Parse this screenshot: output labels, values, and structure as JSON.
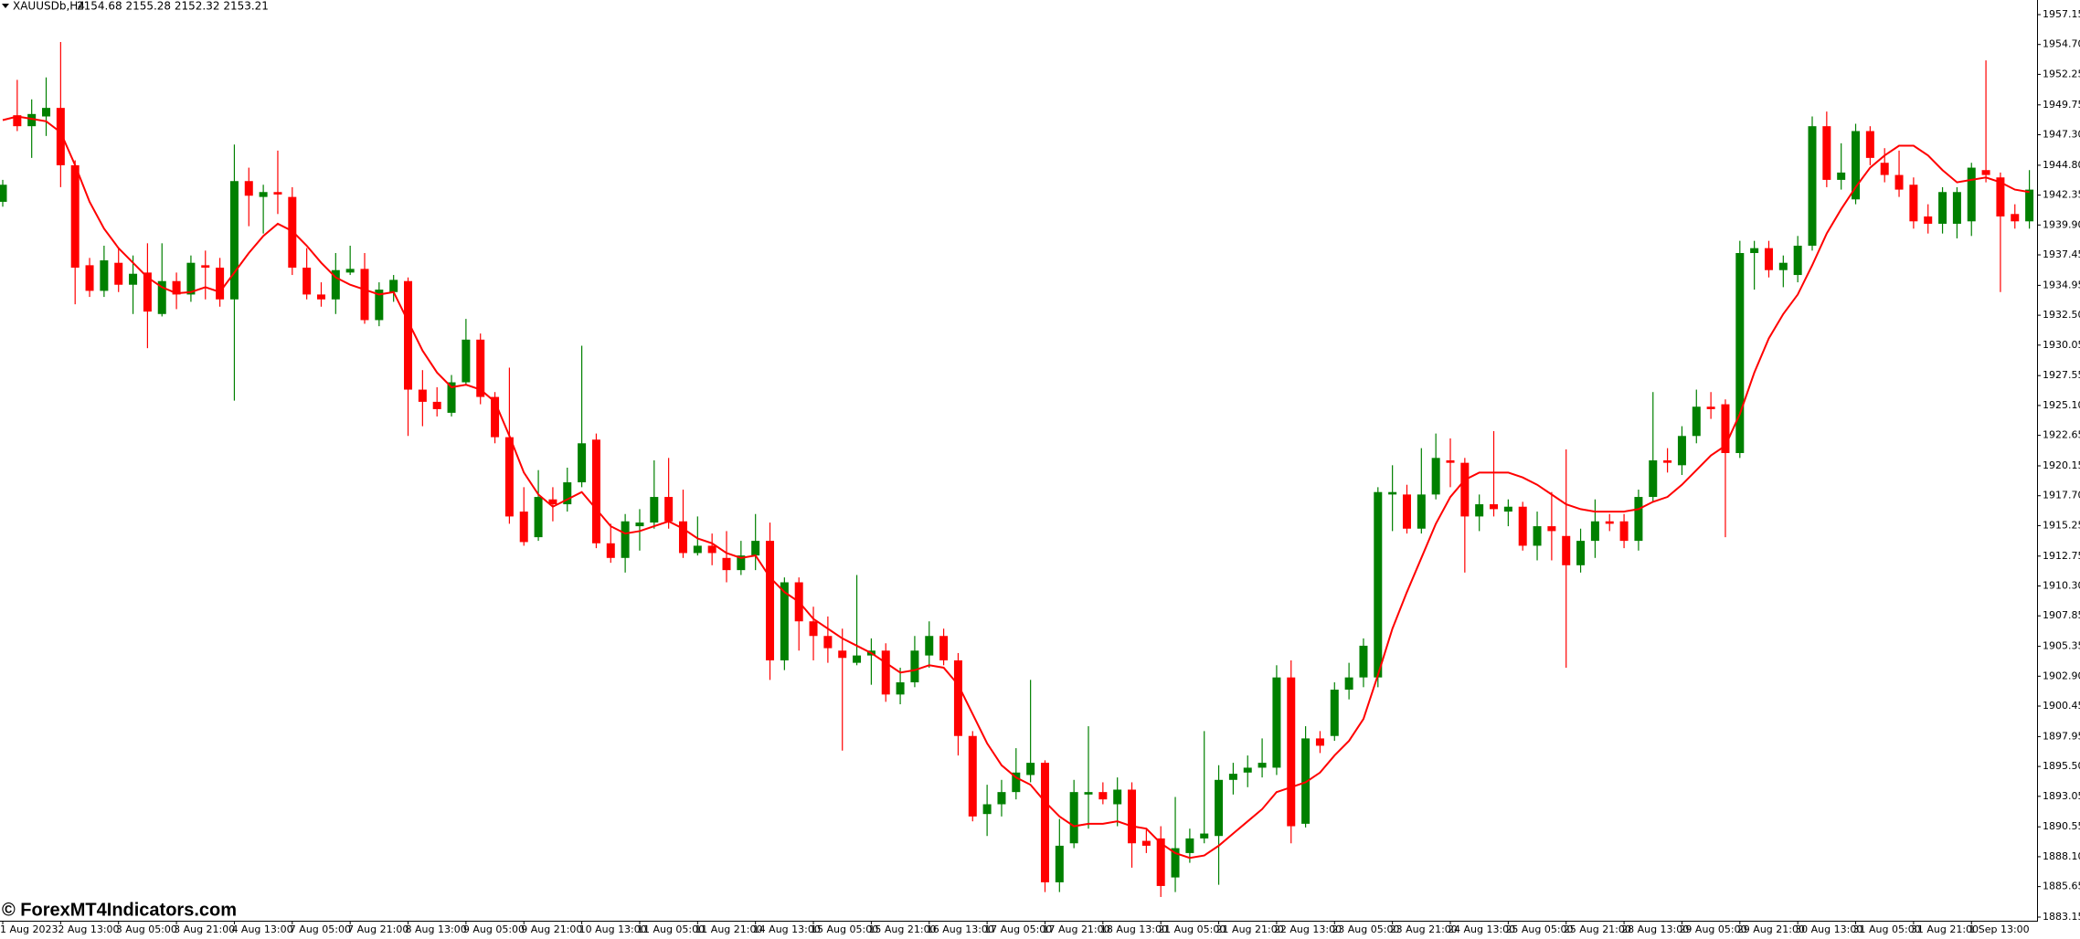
{
  "chart_data": {
    "type": "candlestick",
    "title": "XAUUSDb,H4",
    "subtitle": "2154.68 2155.28 2152.32 2153.21",
    "watermark": "© ForexMT4Indicators.com",
    "up_color": "#008000",
    "down_color": "#ff0000",
    "ylim": [
      1883.15,
      1957.15
    ],
    "yticks": [
      1957.15,
      {
        "value": 1954.7,
        "label": "1954.70"
      },
      1952.25,
      1949.75,
      {
        "value": 1947.3,
        "label": "1947.30"
      },
      {
        "value": 1944.8,
        "label": "1944.80"
      },
      1942.35,
      {
        "value": 1939.9,
        "label": "1939.90"
      },
      1937.45,
      1934.95,
      {
        "value": 1932.5,
        "label": "1932.50"
      },
      1930.05,
      1927.55,
      {
        "value": 1925.1,
        "label": "1925.10"
      },
      1922.65,
      1920.15,
      {
        "value": 1917.7,
        "label": "1917.70"
      },
      1915.25,
      1912.75,
      {
        "value": 1910.3,
        "label": "1910.30"
      },
      1907.85,
      1905.35,
      {
        "value": 1902.9,
        "label": "1902.90"
      },
      1900.45,
      1897.95,
      {
        "value": 1895.5,
        "label": "1895.50"
      },
      1893.05,
      1890.55,
      {
        "value": 1888.1,
        "label": "1888.10"
      },
      1885.65,
      1883.15
    ],
    "categories": [
      "1 Aug 2023",
      null,
      null,
      null,
      "2 Aug 13:00",
      null,
      null,
      null,
      "3 Aug 05:00",
      null,
      null,
      null,
      "3 Aug 21:00",
      null,
      null,
      null,
      "4 Aug 13:00",
      null,
      null,
      null,
      "7 Aug 05:00",
      null,
      null,
      null,
      "7 Aug 21:00",
      null,
      null,
      null,
      "8 Aug 13:00",
      null,
      null,
      null,
      "9 Aug 05:00",
      null,
      null,
      null,
      "9 Aug 21:00",
      null,
      null,
      null,
      "10 Aug 13:00",
      null,
      null,
      null,
      "11 Aug 05:00",
      null,
      null,
      null,
      "11 Aug 21:00",
      null,
      null,
      null,
      "14 Aug 13:00",
      null,
      null,
      null,
      "15 Aug 05:00",
      null,
      null,
      null,
      "15 Aug 21:00",
      null,
      null,
      null,
      "16 Aug 13:00",
      null,
      null,
      null,
      "17 Aug 05:00",
      null,
      null,
      null,
      "17 Aug 21:00",
      null,
      null,
      null,
      "18 Aug 13:00",
      null,
      null,
      null,
      "21 Aug 05:00",
      null,
      null,
      null,
      "21 Aug 21:00",
      null,
      null,
      null,
      "22 Aug 13:00",
      null,
      null,
      null,
      "23 Aug 05:00",
      null,
      null,
      null,
      "23 Aug 21:00",
      null,
      null,
      null,
      "24 Aug 13:00",
      null,
      null,
      null,
      "25 Aug 05:00",
      null,
      null,
      null,
      "25 Aug 21:00",
      null,
      null,
      null,
      "28 Aug 13:00",
      null,
      null,
      null,
      "29 Aug 05:00",
      null,
      null,
      null,
      "29 Aug 21:00",
      null,
      null,
      null,
      "30 Aug 13:00",
      null,
      null,
      null,
      "31 Aug 05:00",
      null,
      null,
      null,
      "31 Aug 21:00",
      null,
      null,
      null,
      "1 Sep 13:00",
      null,
      null,
      null,
      null
    ],
    "open": [
      1941.8,
      1948.9,
      1948.0,
      1948.8,
      1949.5,
      1944.8,
      1936.6,
      1934.5,
      1936.8,
      1935.0,
      1936.0,
      1932.6,
      1935.3,
      1934.2,
      1936.6,
      1936.4,
      1933.8,
      1943.5,
      1942.2,
      1942.6,
      1942.2,
      1936.4,
      1934.2,
      1933.8,
      1936.0,
      1936.3,
      1932.1,
      1934.4,
      1935.3,
      1926.4,
      1925.4,
      1924.5,
      1927.0,
      1930.5,
      1925.8,
      1922.5,
      1916.4,
      1914.3,
      1917.4,
      1917.0,
      1918.8,
      1922.3,
      1913.8,
      1912.6,
      1915.2,
      1915.5,
      1917.6,
      1915.6,
      1913.0,
      1913.6,
      1912.6,
      1911.6,
      1912.8,
      1914.0,
      1904.2,
      1910.6,
      1907.4,
      1906.2,
      1905.0,
      1904.0,
      1904.6,
      1905.0,
      1901.4,
      1902.4,
      1904.6,
      1906.2,
      1904.2,
      1898.0,
      1891.6,
      1892.4,
      1893.4,
      1894.8,
      1895.8,
      1886.0,
      1889.2,
      1893.2,
      1893.4,
      1892.4,
      1893.6,
      1889.4,
      1889.6,
      1886.4,
      1888.4,
      1889.6,
      1889.8,
      1894.4,
      1895.0,
      1895.4,
      1895.4,
      1902.8,
      1890.8,
      1897.8,
      1898.0,
      1901.8,
      1902.8,
      1902.8,
      1917.8,
      1917.8,
      1915.0,
      1917.8,
      1920.6,
      1920.4,
      1916.0,
      1917.0,
      1916.4,
      1916.8,
      1913.6,
      1915.2,
      1914.4,
      1912.0,
      1914.0,
      1915.6,
      1915.6,
      1914.0,
      1917.6,
      1920.6,
      1920.2,
      1922.6,
      1925.0,
      1925.2,
      1921.2,
      1937.6,
      1938.0,
      1936.2,
      1935.8,
      1938.2,
      1948.0,
      1943.6,
      1942.0,
      1947.6,
      1945.0,
      1944.0,
      1943.2,
      1940.6,
      1940.0,
      1940.0,
      1940.2,
      1944.4,
      1943.8,
      1940.8,
      1940.2
    ],
    "high": [
      1943.6,
      1951.8,
      1950.2,
      1952.0,
      1954.9,
      1945.2,
      1937.2,
      1938.2,
      1938.0,
      1937.4,
      1938.4,
      1938.4,
      1936.0,
      1937.4,
      1937.8,
      1937.2,
      1946.5,
      1944.6,
      1943.2,
      1946.0,
      1943.0,
      1938.0,
      1935.2,
      1937.6,
      1938.2,
      1937.6,
      1935.2,
      1935.8,
      1935.6,
      1928.0,
      1926.6,
      1927.6,
      1932.2,
      1931.0,
      1926.2,
      1928.2,
      1918.4,
      1919.8,
      1918.4,
      1920.0,
      1930.0,
      1922.8,
      1915.4,
      1916.2,
      1916.6,
      1920.6,
      1920.8,
      1918.2,
      1916.0,
      1914.6,
      1914.8,
      1914.0,
      1916.2,
      1915.5,
      1911.0,
      1911.0,
      1908.6,
      1907.8,
      1906.8,
      1911.2,
      1906.0,
      1905.6,
      1903.6,
      1906.2,
      1907.4,
      1906.8,
      1904.8,
      1898.4,
      1894.0,
      1894.4,
      1897.0,
      1902.6,
      1896.0,
      1891.2,
      1894.4,
      1898.8,
      1894.2,
      1894.6,
      1894.2,
      1890.4,
      1890.6,
      1893.0,
      1890.4,
      1898.4,
      1895.6,
      1895.8,
      1896.4,
      1897.8,
      1903.8,
      1904.2,
      1898.8,
      1898.4,
      1902.4,
      1904.0,
      1906.0,
      1918.4,
      1920.2,
      1918.6,
      1921.6,
      1922.8,
      1922.4,
      1920.8,
      1917.8,
      1923.0,
      1917.4,
      1917.2,
      1916.4,
      1918.0,
      1921.5,
      1915.0,
      1917.4,
      1916.2,
      1916.2,
      1918.2,
      1926.2,
      1921.6,
      1923.4,
      1926.4,
      1926.2,
      1925.6,
      1938.6,
      1938.6,
      1938.6,
      1937.4,
      1939.0,
      1948.8,
      1949.2,
      1946.6,
      1948.2,
      1948.0,
      1946.2,
      1946.0,
      1943.8,
      1941.6,
      1943.0,
      1943.0,
      1945.0,
      1953.4,
      1944.2,
      1941.6,
      1944.4
    ],
    "low": [
      1941.4,
      1947.6,
      1945.4,
      1947.2,
      1943.0,
      1933.4,
      1934.0,
      1934.0,
      1934.4,
      1932.6,
      1929.8,
      1932.4,
      1933.0,
      1933.6,
      1933.8,
      1933.2,
      1925.5,
      1939.8,
      1939.2,
      1940.8,
      1935.8,
      1933.8,
      1933.2,
      1932.6,
      1935.8,
      1931.8,
      1931.6,
      1933.6,
      1922.6,
      1923.4,
      1924.2,
      1924.2,
      1926.8,
      1925.2,
      1922.0,
      1915.4,
      1913.6,
      1914.0,
      1915.6,
      1916.4,
      1918.4,
      1913.4,
      1912.2,
      1911.4,
      1913.2,
      1915.0,
      1915.0,
      1912.6,
      1912.8,
      1912.0,
      1910.6,
      1911.2,
      1911.6,
      1902.6,
      1903.4,
      1905.0,
      1904.2,
      1904.0,
      1896.8,
      1903.8,
      1902.2,
      1900.8,
      1900.6,
      1902.0,
      1903.6,
      1903.8,
      1896.4,
      1891.0,
      1889.8,
      1891.4,
      1892.8,
      1894.2,
      1885.2,
      1885.2,
      1888.8,
      1890.4,
      1892.4,
      1890.6,
      1887.2,
      1888.4,
      1884.8,
      1885.2,
      1887.6,
      1889.2,
      1885.8,
      1893.2,
      1893.8,
      1894.6,
      1894.8,
      1889.2,
      1890.5,
      1896.6,
      1897.6,
      1901.0,
      1902.0,
      1902.0,
      1914.8,
      1914.6,
      1914.6,
      1917.4,
      1918.4,
      1911.4,
      1914.8,
      1916.0,
      1915.2,
      1913.2,
      1912.4,
      1912.4,
      1903.6,
      1911.4,
      1912.6,
      1914.8,
      1913.4,
      1913.2,
      1917.2,
      1919.6,
      1919.4,
      1922.0,
      1924.0,
      1914.3,
      1920.8,
      1934.6,
      1935.6,
      1934.8,
      1935.2,
      1937.8,
      1943.0,
      1942.8,
      1941.6,
      1944.8,
      1943.4,
      1942.2,
      1939.6,
      1939.2,
      1939.2,
      1938.8,
      1939.0,
      1943.4,
      1934.4,
      1939.6,
      1939.6
    ],
    "close": [
      1943.2,
      1948.0,
      1949.0,
      1949.5,
      1944.8,
      1936.4,
      1934.5,
      1937.0,
      1935.0,
      1935.9,
      1932.8,
      1935.3,
      1934.2,
      1936.8,
      1936.4,
      1933.8,
      1943.5,
      1942.3,
      1942.6,
      1942.4,
      1936.4,
      1934.2,
      1933.8,
      1936.2,
      1936.3,
      1932.1,
      1934.6,
      1935.4,
      1926.4,
      1925.4,
      1924.8,
      1927.0,
      1930.5,
      1925.8,
      1922.5,
      1916.0,
      1913.9,
      1917.6,
      1917.0,
      1918.8,
      1922.0,
      1913.8,
      1912.6,
      1915.6,
      1915.5,
      1917.6,
      1915.6,
      1913.0,
      1913.6,
      1913.0,
      1911.6,
      1912.8,
      1914.0,
      1904.2,
      1910.6,
      1907.4,
      1906.2,
      1905.2,
      1904.4,
      1904.6,
      1905.0,
      1901.4,
      1902.4,
      1905.0,
      1906.2,
      1904.2,
      1898.0,
      1891.4,
      1892.4,
      1893.4,
      1895.0,
      1895.8,
      1886.0,
      1889.0,
      1893.4,
      1893.4,
      1892.8,
      1893.6,
      1889.2,
      1889.0,
      1885.7,
      1888.8,
      1889.6,
      1890.0,
      1894.4,
      1894.9,
      1895.4,
      1895.8,
      1902.8,
      1890.6,
      1897.8,
      1897.2,
      1901.8,
      1902.8,
      1905.4,
      1918.0,
      1918.0,
      1915.0,
      1917.8,
      1920.8,
      1920.4,
      1916.0,
      1917.0,
      1916.6,
      1916.8,
      1913.6,
      1915.2,
      1914.8,
      1912.0,
      1914.0,
      1915.6,
      1915.4,
      1914.0,
      1917.6,
      1920.6,
      1920.4,
      1922.6,
      1925.0,
      1924.8,
      1921.2,
      1937.6,
      1938.0,
      1936.2,
      1936.8,
      1938.2,
      1948.0,
      1943.6,
      1944.2,
      1947.6,
      1945.4,
      1944.0,
      1942.8,
      1940.2,
      1940.0,
      1942.6,
      1942.6,
      1944.6,
      1944.0,
      1940.6,
      1940.2,
      1942.8
    ],
    "line": {
      "color": "#ff0000",
      "values": [
        1948.5,
        1948.8,
        1948.6,
        1948.4,
        1947.5,
        1944.8,
        1941.8,
        1939.6,
        1938.0,
        1936.8,
        1935.6,
        1934.8,
        1934.3,
        1934.4,
        1934.8,
        1934.4,
        1936.0,
        1937.6,
        1939.0,
        1940.0,
        1939.4,
        1938.2,
        1936.8,
        1935.6,
        1935.0,
        1934.6,
        1934.2,
        1934.4,
        1932.0,
        1929.6,
        1927.8,
        1926.6,
        1926.8,
        1926.4,
        1925.4,
        1922.6,
        1919.6,
        1917.8,
        1916.8,
        1917.4,
        1918.0,
        1916.6,
        1915.2,
        1914.6,
        1914.8,
        1915.2,
        1915.6,
        1915.0,
        1914.2,
        1913.8,
        1913.0,
        1912.6,
        1912.8,
        1911.0,
        1909.8,
        1909.0,
        1907.6,
        1906.8,
        1906.0,
        1905.4,
        1904.8,
        1904.0,
        1903.2,
        1903.4,
        1903.8,
        1903.6,
        1902.2,
        1899.8,
        1897.4,
        1895.6,
        1894.6,
        1894.0,
        1892.6,
        1891.4,
        1890.6,
        1890.8,
        1890.8,
        1891.0,
        1890.6,
        1890.4,
        1889.2,
        1888.4,
        1888.0,
        1888.2,
        1889.0,
        1890.0,
        1891.0,
        1892.0,
        1893.4,
        1893.8,
        1894.2,
        1895.0,
        1896.4,
        1897.6,
        1899.4,
        1903.0,
        1906.8,
        1909.8,
        1912.6,
        1915.4,
        1917.6,
        1919.0,
        1919.6,
        1919.6,
        1919.6,
        1919.2,
        1918.6,
        1917.8,
        1917.0,
        1916.6,
        1916.4,
        1916.4,
        1916.4,
        1916.6,
        1917.2,
        1917.6,
        1918.6,
        1919.8,
        1921.0,
        1921.8,
        1924.4,
        1927.8,
        1930.6,
        1932.6,
        1934.2,
        1936.6,
        1939.2,
        1941.2,
        1943.0,
        1944.6,
        1945.6,
        1946.4,
        1946.4,
        1945.6,
        1944.4,
        1943.4,
        1943.6,
        1943.8,
        1943.4,
        1942.8,
        1942.6
      ]
    }
  }
}
